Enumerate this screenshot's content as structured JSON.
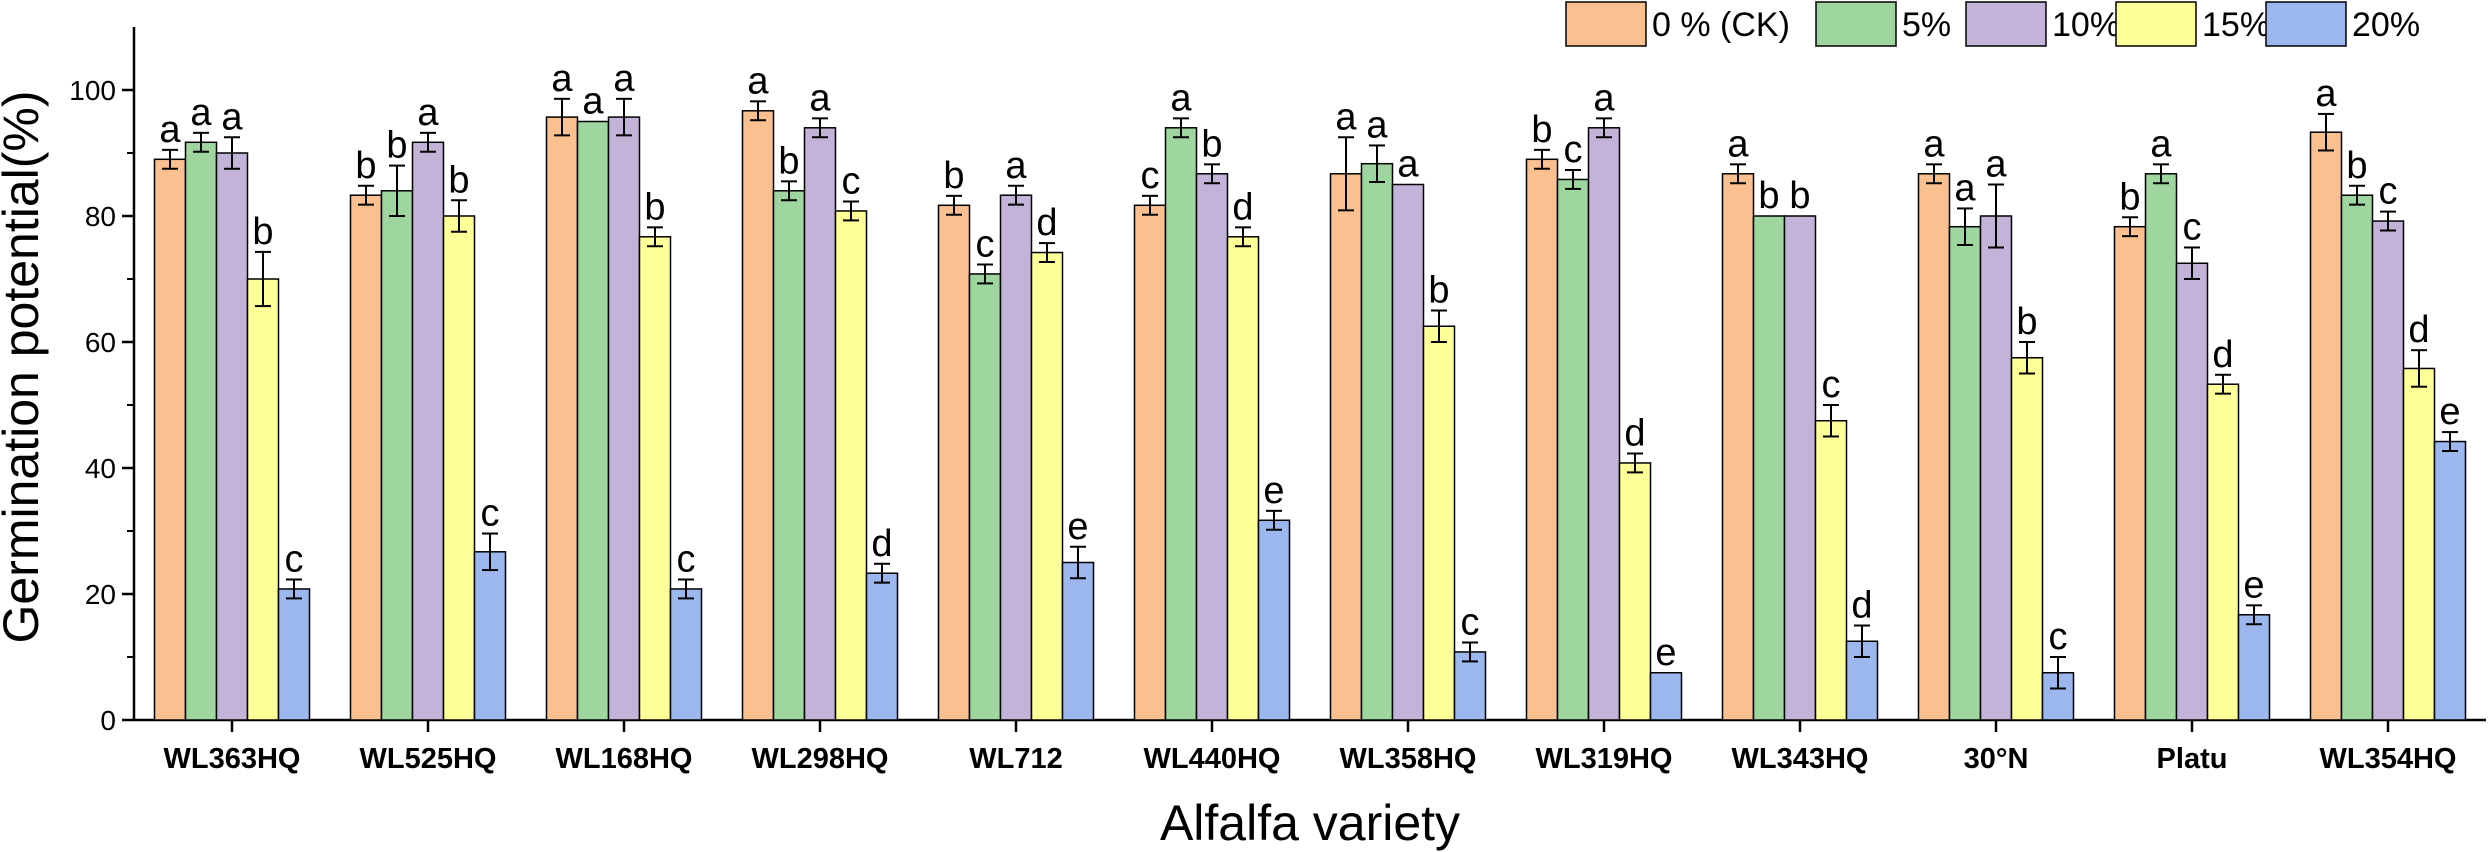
{
  "chart_data": {
    "type": "bar",
    "xlabel": "Alfalfa variety",
    "ylabel": "Germination potential(%)",
    "ylim": [
      0,
      110
    ],
    "yticks": [
      0,
      20,
      40,
      60,
      80,
      100
    ],
    "legend_position": "top-right",
    "categories": [
      "WL363HQ",
      "WL525HQ",
      "WL168HQ",
      "WL298HQ",
      "WL712",
      "WL440HQ",
      "WL358HQ",
      "WL319HQ",
      "WL343HQ",
      "30°N",
      "Platu",
      "WL354HQ"
    ],
    "series": [
      {
        "name": "0 % (CK)",
        "color": "#fac090",
        "values": [
          89.0,
          83.3,
          95.7,
          96.7,
          81.7,
          81.7,
          86.7,
          89.0,
          86.7,
          86.7,
          78.3,
          93.3
        ],
        "errors": [
          1.5,
          1.5,
          2.9,
          1.5,
          1.5,
          1.5,
          5.8,
          1.5,
          1.5,
          1.5,
          1.5,
          2.9
        ],
        "letters": [
          "a",
          "b",
          "a",
          "a",
          "b",
          "c",
          "a",
          "b",
          "a",
          "a",
          "b",
          "a"
        ]
      },
      {
        "name": "5%",
        "color": "#9fd69f",
        "values": [
          91.7,
          84.0,
          95.0,
          84.0,
          70.8,
          94.0,
          88.3,
          85.8,
          80.0,
          78.3,
          86.7,
          83.3
        ],
        "errors": [
          1.5,
          4.0,
          0,
          1.5,
          1.5,
          1.5,
          2.9,
          1.5,
          0,
          2.9,
          1.5,
          1.5
        ],
        "letters": [
          "a",
          "b",
          "a",
          "b",
          "c",
          "a",
          "a",
          "c",
          "b",
          "a",
          "a",
          "b"
        ]
      },
      {
        "name": "10%",
        "color": "#c3b3d8",
        "values": [
          90.0,
          91.7,
          95.7,
          94.0,
          83.3,
          86.7,
          85.0,
          94.0,
          80.0,
          80.0,
          72.5,
          79.2
        ],
        "errors": [
          2.5,
          1.5,
          2.9,
          1.5,
          1.5,
          1.5,
          0,
          1.5,
          0,
          5.0,
          2.5,
          1.5
        ],
        "letters": [
          "a",
          "a",
          "a",
          "a",
          "a",
          "b",
          "a",
          "a",
          "b",
          "a",
          "c",
          "c"
        ]
      },
      {
        "name": "15%",
        "color": "#ffff99",
        "values": [
          70.0,
          80.0,
          76.7,
          80.8,
          74.2,
          76.7,
          62.5,
          40.8,
          47.5,
          57.5,
          53.3,
          55.8
        ],
        "errors": [
          4.3,
          2.5,
          1.5,
          1.5,
          1.5,
          1.5,
          2.5,
          1.5,
          2.5,
          2.5,
          1.5,
          2.9
        ],
        "letters": [
          "b",
          "b",
          "b",
          "c",
          "d",
          "d",
          "b",
          "d",
          "c",
          "b",
          "d",
          "d"
        ]
      },
      {
        "name": "20%",
        "color": "#9bb7ee",
        "values": [
          20.8,
          26.7,
          20.8,
          23.3,
          25.0,
          31.7,
          10.8,
          7.5,
          12.5,
          7.5,
          16.7,
          44.2
        ],
        "errors": [
          1.5,
          2.9,
          1.5,
          1.5,
          2.5,
          1.5,
          1.5,
          0,
          2.5,
          2.5,
          1.5,
          1.5
        ],
        "letters": [
          "c",
          "c",
          "c",
          "d",
          "e",
          "e",
          "c",
          "e",
          "d",
          "c",
          "e",
          "e"
        ]
      }
    ]
  }
}
